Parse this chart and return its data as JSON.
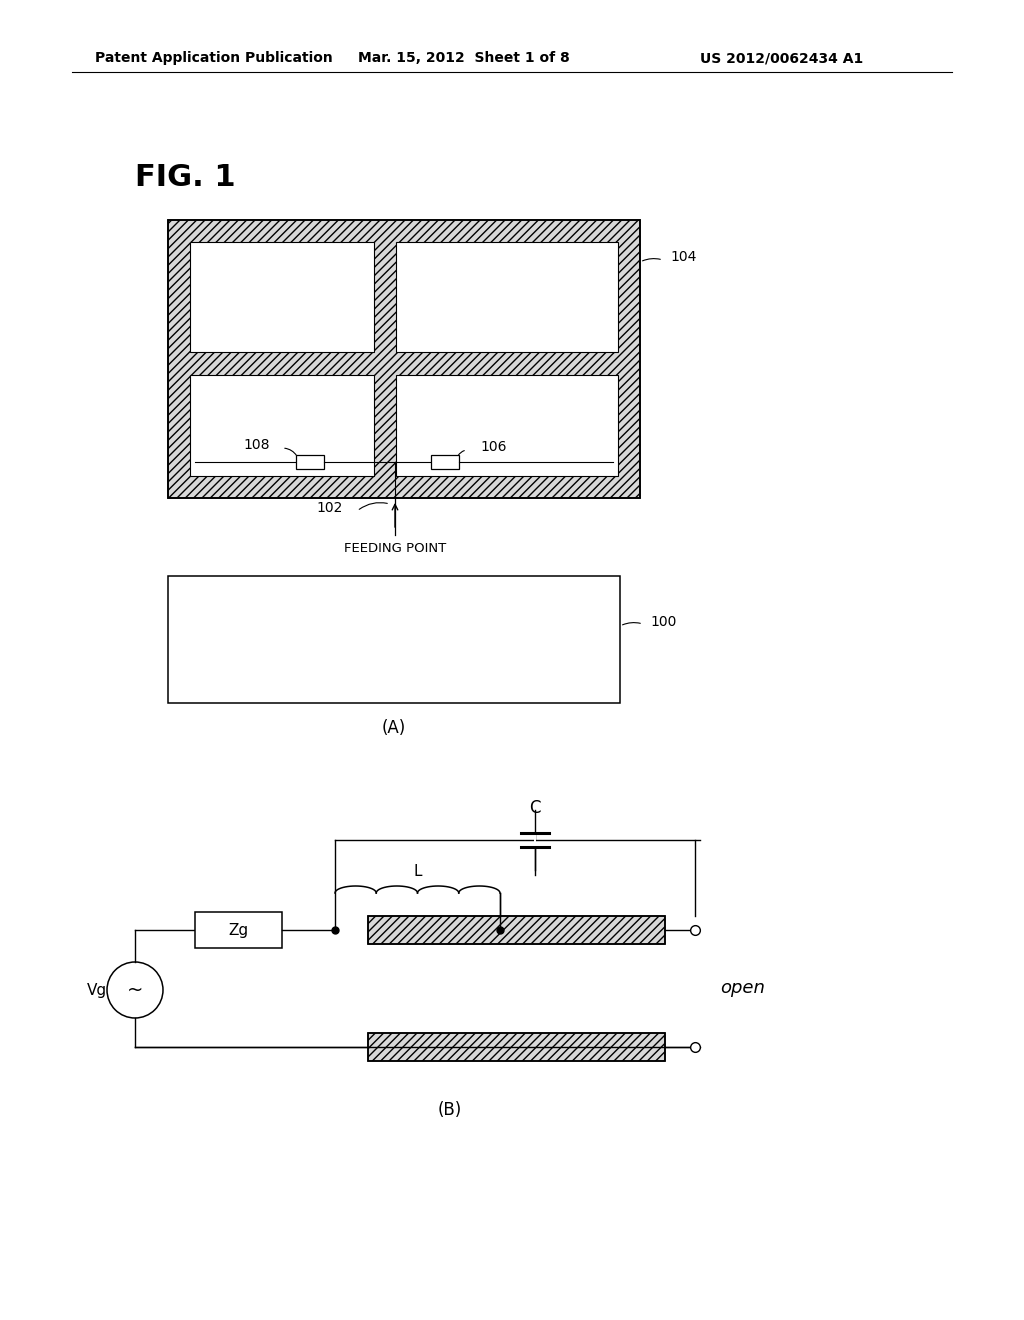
{
  "title_header": "Patent Application Publication",
  "date_header": "Mar. 15, 2012  Sheet 1 of 8",
  "patent_header": "US 2012/0062434 A1",
  "fig_label": "FIG. 1",
  "label_104": "104",
  "label_100": "100",
  "label_102": "102",
  "label_106": "106",
  "label_108": "108",
  "label_A": "(A)",
  "label_B": "(B)",
  "feeding_point": "FEEDING POINT",
  "label_C": "C",
  "label_L": "L",
  "label_Zg": "Zg",
  "label_Vg": "Vg",
  "label_open": "open",
  "line_color": "#000000",
  "bg_color": "#ffffff"
}
